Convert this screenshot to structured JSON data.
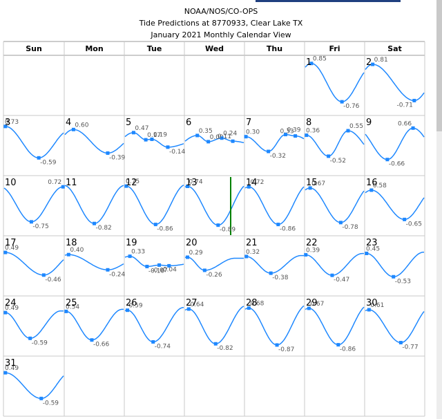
{
  "header": {
    "agency": "NOAA/NOS/CO-OPS",
    "station_title": "Tide Predictions at 8770933, Clear Lake TX",
    "view_title": "January 2021 Monthly Calendar View"
  },
  "colors": {
    "curve": "#1e88ff",
    "marker": "#1e88ff",
    "today_line": "#008000",
    "grid": "#999999"
  },
  "chart_data": {
    "type": "line",
    "month": "January 2021",
    "weekdays": [
      "Sun",
      "Mon",
      "Tue",
      "Wed",
      "Thu",
      "Fri",
      "Sat"
    ],
    "first_weekday_index": 5,
    "days_in_month": 31,
    "y_unit": "ft",
    "today": 13,
    "days": [
      {
        "day": 1,
        "extremes": [
          {
            "t": 2.5,
            "v": 0.85
          },
          {
            "t": 15.0,
            "v": -0.76
          }
        ]
      },
      {
        "day": 2,
        "extremes": [
          {
            "t": 3.0,
            "v": 0.81
          },
          {
            "t": 20.0,
            "v": -0.71
          }
        ]
      },
      {
        "day": 3,
        "extremes": [
          {
            "t": 0.5,
            "v": 0.73
          },
          {
            "t": 14.0,
            "v": -0.59
          }
        ]
      },
      {
        "day": 4,
        "extremes": [
          {
            "t": 3.5,
            "v": 0.6
          },
          {
            "t": 17.5,
            "v": -0.39
          }
        ]
      },
      {
        "day": 5,
        "extremes": [
          {
            "t": 3.5,
            "v": 0.47
          },
          {
            "t": 8.5,
            "v": 0.17
          },
          {
            "t": 11.0,
            "v": 0.19
          },
          {
            "t": 17.5,
            "v": -0.14
          }
        ]
      },
      {
        "day": 6,
        "extremes": [
          {
            "t": 5.0,
            "v": 0.35
          },
          {
            "t": 9.5,
            "v": 0.09
          },
          {
            "t": 15.0,
            "v": 0.24
          },
          {
            "t": 19.5,
            "v": 0.11
          }
        ]
      },
      {
        "day": 7,
        "extremes": [
          {
            "t": 0.3,
            "v": 0.3
          },
          {
            "t": 9.5,
            "v": -0.32
          },
          {
            "t": 16.5,
            "v": 0.39
          },
          {
            "t": 20.5,
            "v": 0.33
          }
        ]
      },
      {
        "day": 8,
        "extremes": [
          {
            "t": 0.5,
            "v": 0.36
          },
          {
            "t": 9.5,
            "v": -0.52
          },
          {
            "t": 17.5,
            "v": 0.55
          }
        ]
      },
      {
        "day": 9,
        "extremes": [
          {
            "t": 9.0,
            "v": -0.66
          },
          {
            "t": 19.5,
            "v": 0.66
          }
        ]
      },
      {
        "day": 10,
        "extremes": [
          {
            "t": 11.0,
            "v": -0.75
          },
          {
            "t": 23.8,
            "v": 0.72
          }
        ]
      },
      {
        "day": 11,
        "extremes": [
          {
            "t": 12.0,
            "v": -0.82
          }
        ]
      },
      {
        "day": 12,
        "extremes": [
          {
            "t": 0.5,
            "v": 0.75
          },
          {
            "t": 12.5,
            "v": -0.86
          }
        ]
      },
      {
        "day": 13,
        "extremes": [
          {
            "t": 1.0,
            "v": 0.74
          },
          {
            "t": 13.5,
            "v": -0.89
          }
        ]
      },
      {
        "day": 14,
        "extremes": [
          {
            "t": 1.5,
            "v": 0.72
          },
          {
            "t": 13.5,
            "v": -0.86
          }
        ]
      },
      {
        "day": 15,
        "extremes": [
          {
            "t": 2.0,
            "v": 0.67
          },
          {
            "t": 14.5,
            "v": -0.78
          }
        ]
      },
      {
        "day": 16,
        "extremes": [
          {
            "t": 2.5,
            "v": 0.58
          },
          {
            "t": 16.0,
            "v": -0.65
          }
        ]
      },
      {
        "day": 17,
        "extremes": [
          {
            "t": 0.5,
            "v": 0.49
          },
          {
            "t": 16.0,
            "v": -0.46
          }
        ]
      },
      {
        "day": 18,
        "extremes": [
          {
            "t": 1.5,
            "v": 0.4
          },
          {
            "t": 17.5,
            "v": -0.24
          }
        ]
      },
      {
        "day": 19,
        "extremes": [
          {
            "t": 2.0,
            "v": 0.33
          },
          {
            "t": 9.0,
            "v": -0.1
          },
          {
            "t": 14.0,
            "v": -0.04
          },
          {
            "t": 18.0,
            "v": -0.07
          }
        ]
      },
      {
        "day": 20,
        "extremes": [
          {
            "t": 1.0,
            "v": 0.29
          },
          {
            "t": 8.0,
            "v": -0.26
          }
        ]
      },
      {
        "day": 21,
        "extremes": [
          {
            "t": 0.5,
            "v": 0.32
          },
          {
            "t": 10.5,
            "v": -0.38
          }
        ]
      },
      {
        "day": 22,
        "extremes": [
          {
            "t": 0.2,
            "v": 0.39
          },
          {
            "t": 11.0,
            "v": -0.47
          }
        ]
      },
      {
        "day": 23,
        "extremes": [
          {
            "t": 0.5,
            "v": 0.45
          },
          {
            "t": 11.5,
            "v": -0.53
          }
        ]
      },
      {
        "day": 24,
        "extremes": [
          {
            "t": 0.5,
            "v": 0.49
          },
          {
            "t": 10.5,
            "v": -0.59
          }
        ]
      },
      {
        "day": 25,
        "extremes": [
          {
            "t": 0.5,
            "v": 0.54
          },
          {
            "t": 11.0,
            "v": -0.66
          }
        ]
      },
      {
        "day": 26,
        "extremes": [
          {
            "t": 1.0,
            "v": 0.59
          },
          {
            "t": 11.5,
            "v": -0.74
          }
        ]
      },
      {
        "day": 27,
        "extremes": [
          {
            "t": 1.5,
            "v": 0.64
          },
          {
            "t": 12.5,
            "v": -0.82
          }
        ]
      },
      {
        "day": 28,
        "extremes": [
          {
            "t": 1.5,
            "v": 0.68
          },
          {
            "t": 13.0,
            "v": -0.87
          }
        ]
      },
      {
        "day": 29,
        "extremes": [
          {
            "t": 1.5,
            "v": 0.67
          },
          {
            "t": 13.5,
            "v": -0.86
          }
        ]
      },
      {
        "day": 30,
        "extremes": [
          {
            "t": 1.5,
            "v": 0.61
          },
          {
            "t": 14.5,
            "v": -0.77
          }
        ]
      },
      {
        "day": 31,
        "extremes": [
          {
            "t": 0.5,
            "v": 0.49
          },
          {
            "t": 15.0,
            "v": -0.59
          }
        ]
      }
    ]
  }
}
